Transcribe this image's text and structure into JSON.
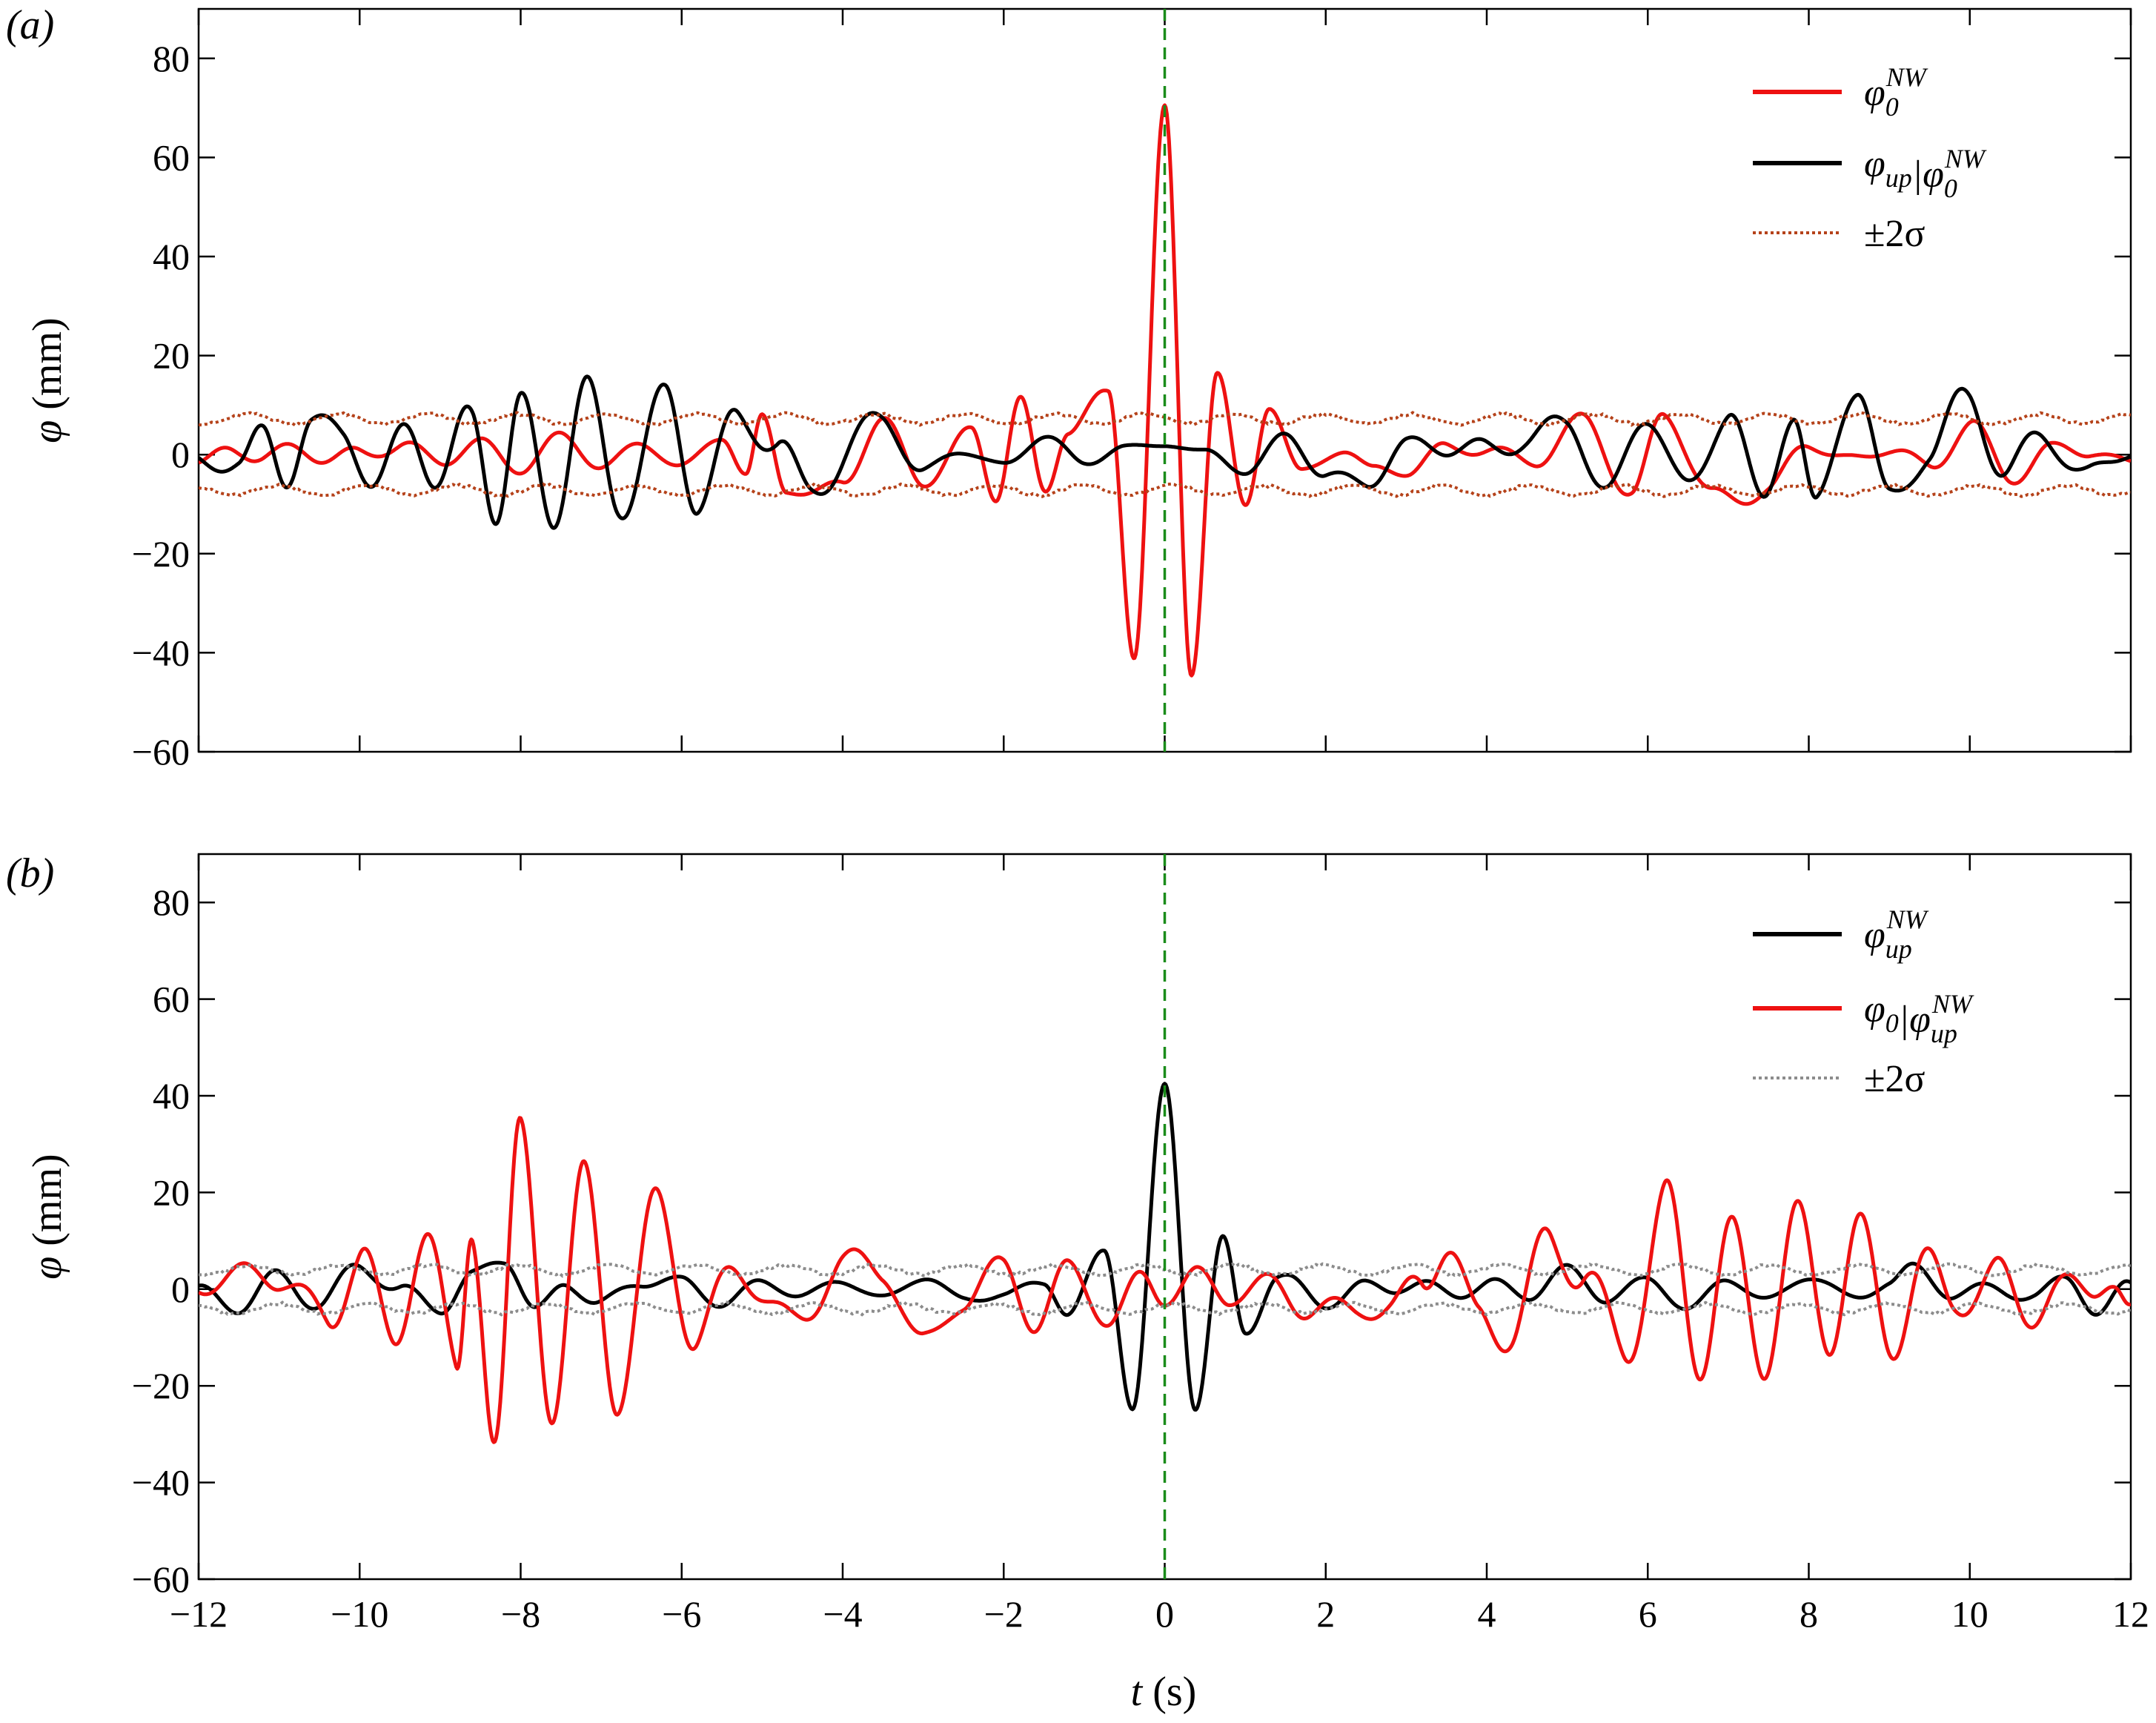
{
  "chart_data": [
    {
      "type": "line",
      "panel_label": "(a)",
      "xlabel_var": "t",
      "xlabel_unit": " (s)",
      "ylabel_var": "φ",
      "ylabel_unit": " (mm)",
      "xlim": [
        -12,
        12
      ],
      "ylim": [
        -60,
        90
      ],
      "xticks": [
        -12,
        -10,
        -8,
        -6,
        -4,
        -2,
        0,
        2,
        4,
        6,
        8,
        10,
        12
      ],
      "yticks": [
        -60,
        -40,
        -20,
        0,
        20,
        40,
        60,
        80
      ],
      "ytick_labels": [
        "−60",
        "−40",
        "−20",
        "0",
        "20",
        "40",
        "60",
        "80"
      ],
      "vline_x": 0,
      "vline_color": "#1a8c1a",
      "legend_position": "top-right",
      "series": [
        {
          "legend_main": "φ",
          "legend_sub": "0",
          "legend_sup": "NW",
          "legend_rest": "",
          "legend_rest_sub": "",
          "legend_rest_sup": "",
          "color": "#ee1111",
          "style": "solid",
          "role": "peak",
          "peak": 83,
          "amps": [
            3,
            4,
            3,
            2,
            2,
            3,
            8,
            6,
            4,
            3,
            5,
            7,
            4,
            3
          ],
          "points": [
            [
              -12,
              -2
            ],
            [
              -11.6,
              2
            ],
            [
              -11.2,
              -1
            ],
            [
              -10.8,
              1
            ],
            [
              -10.4,
              -1
            ],
            [
              -10,
              1
            ],
            [
              -9.5,
              2
            ],
            [
              -9,
              -2
            ],
            [
              -8.5,
              3
            ],
            [
              -8,
              -3
            ],
            [
              -7.5,
              4
            ],
            [
              -7,
              -3
            ],
            [
              -6.5,
              3
            ],
            [
              -6,
              -3
            ],
            [
              -5.5,
              4
            ],
            [
              -5.2,
              -5
            ],
            [
              -5,
              9
            ],
            [
              -4.7,
              -8
            ],
            [
              -4.4,
              -9
            ],
            [
              -4,
              -7
            ],
            [
              -3.5,
              8
            ],
            [
              -3,
              -6
            ],
            [
              -2.4,
              5
            ],
            [
              -2.1,
              -10
            ],
            [
              -1.8,
              12
            ],
            [
              -1.5,
              -9
            ],
            [
              -1.2,
              8
            ],
            [
              -0.7,
              14
            ],
            [
              -0.38,
              -48
            ],
            [
              0,
              83
            ],
            [
              0.33,
              -52
            ],
            [
              0.65,
              20
            ],
            [
              1.0,
              -13
            ],
            [
              1.3,
              12
            ],
            [
              1.7,
              -6
            ],
            [
              2.2,
              3
            ],
            [
              2.6,
              -4
            ],
            [
              3.0,
              -4
            ],
            [
              3.5,
              1
            ],
            [
              4,
              2
            ],
            [
              4.6,
              -2
            ],
            [
              5.2,
              8
            ],
            [
              5.8,
              -9
            ],
            [
              6.2,
              10
            ],
            [
              6.8,
              -11
            ],
            [
              7.5,
              -8
            ],
            [
              8,
              4
            ],
            [
              8.5,
              -4
            ],
            [
              9,
              3
            ],
            [
              9.5,
              -3
            ],
            [
              10,
              7
            ],
            [
              10.5,
              -6
            ],
            [
              11,
              2
            ],
            [
              11.5,
              1
            ],
            [
              12,
              -3
            ]
          ]
        },
        {
          "legend_main": "φ",
          "legend_sub": "up",
          "legend_sup": "",
          "legend_rest": "|φ",
          "legend_rest_sub": "0",
          "legend_rest_sup": "NW",
          "color": "#000000",
          "style": "solid",
          "role": "cond",
          "peak": 2,
          "amps": [
            4,
            8,
            12,
            13,
            7,
            4,
            3,
            2,
            4,
            6,
            9,
            12,
            15,
            6
          ],
          "points": [
            [
              -12,
              -1
            ],
            [
              -11.5,
              -2
            ],
            [
              -11.2,
              6
            ],
            [
              -10.9,
              -6
            ],
            [
              -10.6,
              5
            ],
            [
              -10.2,
              7
            ],
            [
              -9.8,
              -7
            ],
            [
              -9.4,
              8
            ],
            [
              -9.0,
              -9
            ],
            [
              -8.6,
              9
            ],
            [
              -8.3,
              -11
            ],
            [
              -8.0,
              12
            ],
            [
              -7.6,
              -13
            ],
            [
              -7.2,
              12
            ],
            [
              -6.8,
              -11
            ],
            [
              -6.2,
              14
            ],
            [
              -5.8,
              -10
            ],
            [
              -5.3,
              6
            ],
            [
              -4.8,
              4
            ],
            [
              -4.4,
              -8
            ],
            [
              -3.5,
              8
            ],
            [
              -3,
              -4
            ],
            [
              -2.5,
              2
            ],
            [
              -2,
              -4
            ],
            [
              -1.5,
              5
            ],
            [
              -1,
              -2
            ],
            [
              -0.5,
              2
            ],
            [
              0,
              2
            ],
            [
              0.5,
              1
            ],
            [
              1,
              -4
            ],
            [
              1.5,
              4
            ],
            [
              2,
              -5
            ],
            [
              2.5,
              -6
            ],
            [
              3,
              2
            ],
            [
              3.5,
              1
            ],
            [
              4,
              2
            ],
            [
              4.5,
              4
            ],
            [
              5,
              7
            ],
            [
              5.5,
              -10
            ],
            [
              6,
              12
            ],
            [
              6.5,
              -10
            ],
            [
              7,
              10
            ],
            [
              7.4,
              -12
            ],
            [
              7.8,
              14
            ],
            [
              8.1,
              -14
            ],
            [
              8.6,
              17
            ],
            [
              9,
              -14
            ],
            [
              9.5,
              6
            ],
            [
              10,
              11
            ],
            [
              10.5,
              -6
            ],
            [
              11,
              6
            ],
            [
              11.5,
              -5
            ],
            [
              12,
              1
            ]
          ]
        },
        {
          "legend_main": "±2σ",
          "legend_sub": "",
          "legend_sup": "",
          "legend_rest": "",
          "legend_rest_sub": "",
          "legend_rest_sup": "",
          "color": "#b5421a",
          "style": "dotted",
          "role": "band",
          "band": 7.2
        }
      ]
    },
    {
      "type": "line",
      "panel_label": "(b)",
      "xlabel_var": "t",
      "xlabel_unit": " (s)",
      "ylabel_var": "φ",
      "ylabel_unit": " (mm)",
      "xlim": [
        -12,
        12
      ],
      "ylim": [
        -60,
        90
      ],
      "xticks": [
        -12,
        -10,
        -8,
        -6,
        -4,
        -2,
        0,
        2,
        4,
        6,
        8,
        10,
        12
      ],
      "xtick_labels": [
        "−12",
        "−10",
        "−8",
        "−6",
        "−4",
        "−2",
        "0",
        "2",
        "4",
        "6",
        "8",
        "10",
        "12"
      ],
      "yticks": [
        -60,
        -40,
        -20,
        0,
        20,
        40,
        60,
        80
      ],
      "ytick_labels": [
        "−60",
        "−40",
        "−20",
        "0",
        "20",
        "40",
        "60",
        "80"
      ],
      "vline_x": 0,
      "vline_color": "#1a8c1a",
      "legend_position": "top-right",
      "series": [
        {
          "legend_main": "φ",
          "legend_sub": "up",
          "legend_sup": "NW",
          "legend_rest": "",
          "legend_rest_sub": "",
          "legend_rest_sup": "",
          "color": "#000000",
          "style": "solid",
          "role": "peak",
          "peak": 50,
          "amps": [
            3,
            5,
            6,
            4,
            2,
            2,
            3,
            4,
            6,
            3,
            2,
            3,
            3,
            4
          ],
          "points": [
            [
              -12,
              0
            ],
            [
              -11.5,
              -5
            ],
            [
              -11,
              3
            ],
            [
              -10.5,
              -3
            ],
            [
              -10,
              6
            ],
            [
              -9.5,
              -2
            ],
            [
              -9,
              -3
            ],
            [
              -8.6,
              3
            ],
            [
              -8.2,
              8
            ],
            [
              -7.8,
              -7
            ],
            [
              -7.4,
              2
            ],
            [
              -7,
              -3
            ],
            [
              -6.5,
              2
            ],
            [
              -6,
              1
            ],
            [
              -5.5,
              -3
            ],
            [
              -5,
              2
            ],
            [
              -4.5,
              -2
            ],
            [
              -4,
              2
            ],
            [
              -3.5,
              -2
            ],
            [
              -3,
              3
            ],
            [
              -2.5,
              -3
            ],
            [
              -2,
              -1
            ],
            [
              -1.5,
              2
            ],
            [
              -1.2,
              -6
            ],
            [
              -0.75,
              9
            ],
            [
              -0.4,
              -29
            ],
            [
              0,
              50
            ],
            [
              0.38,
              -29
            ],
            [
              0.72,
              12
            ],
            [
              1.0,
              -11
            ],
            [
              1.4,
              3
            ],
            [
              2,
              -2
            ],
            [
              2.5,
              -1
            ],
            [
              3,
              1
            ],
            [
              3.5,
              0
            ],
            [
              4,
              1
            ],
            [
              4.5,
              -2
            ],
            [
              5,
              5
            ],
            [
              5.5,
              -2
            ],
            [
              6,
              2
            ],
            [
              6.5,
              -5
            ],
            [
              7,
              3
            ],
            [
              7.5,
              -3
            ],
            [
              8,
              3
            ],
            [
              8.5,
              -2
            ],
            [
              9,
              2
            ],
            [
              9.3,
              5
            ],
            [
              9.8,
              -2
            ],
            [
              10.3,
              1
            ],
            [
              10.8,
              -2
            ],
            [
              11.2,
              3
            ],
            [
              11.6,
              -7
            ],
            [
              12,
              2
            ]
          ]
        },
        {
          "legend_main": "φ",
          "legend_sub": "0",
          "legend_sup": "",
          "legend_rest": "|φ",
          "legend_rest_sub": "up",
          "legend_rest_sup": "NW",
          "color": "#ee1111",
          "style": "solid",
          "role": "cond",
          "peak": -4,
          "amps": [
            4,
            12,
            28,
            22,
            12,
            6,
            5,
            6,
            8,
            14,
            20,
            22,
            12,
            5
          ],
          "points": [
            [
              -12,
              1
            ],
            [
              -11.5,
              3
            ],
            [
              -11,
              2
            ],
            [
              -10.4,
              -6
            ],
            [
              -10,
              10
            ],
            [
              -9.6,
              -17
            ],
            [
              -9.2,
              14
            ],
            [
              -8.8,
              -22
            ],
            [
              -8.6,
              24
            ],
            [
              -8.3,
              -32
            ],
            [
              -8.0,
              30
            ],
            [
              -7.6,
              -27
            ],
            [
              -7.2,
              22
            ],
            [
              -6.8,
              -17
            ],
            [
              -6.3,
              16
            ],
            [
              -5.8,
              -13
            ],
            [
              -5.2,
              8
            ],
            [
              -4.6,
              -10
            ],
            [
              -4,
              5
            ],
            [
              -3.5,
              6
            ],
            [
              -3,
              -13
            ],
            [
              -2.5,
              -4
            ],
            [
              -2,
              6
            ],
            [
              -1.6,
              -8
            ],
            [
              -1.2,
              6
            ],
            [
              -0.7,
              -9
            ],
            [
              -0.3,
              4
            ],
            [
              0,
              -4
            ],
            [
              0.4,
              5
            ],
            [
              0.8,
              -3
            ],
            [
              1.3,
              1
            ],
            [
              1.8,
              -4
            ],
            [
              2.4,
              -4
            ],
            [
              2.8,
              -7
            ],
            [
              3.2,
              2
            ],
            [
              3.5,
              12
            ],
            [
              3.9,
              -6
            ],
            [
              4.3,
              -11
            ],
            [
              4.8,
              9
            ],
            [
              5.2,
              7
            ],
            [
              5.7,
              -14
            ],
            [
              6.2,
              18
            ],
            [
              6.6,
              -19
            ],
            [
              7,
              17
            ],
            [
              7.4,
              -17
            ],
            [
              7.8,
              18
            ],
            [
              8.2,
              -20
            ],
            [
              8.6,
              22
            ],
            [
              9.0,
              -17
            ],
            [
              9.4,
              13
            ],
            [
              9.8,
              -12
            ],
            [
              10.3,
              9
            ],
            [
              10.7,
              -9
            ],
            [
              11.1,
              5
            ],
            [
              11.5,
              -5
            ],
            [
              11.8,
              2
            ],
            [
              12,
              -3
            ]
          ]
        },
        {
          "legend_main": "±2σ",
          "legend_sub": "",
          "legend_sup": "",
          "legend_rest": "",
          "legend_rest_sub": "",
          "legend_rest_sup": "",
          "color": "#8c8c8c",
          "style": "dotted",
          "role": "band",
          "band": 4.0
        }
      ]
    }
  ]
}
